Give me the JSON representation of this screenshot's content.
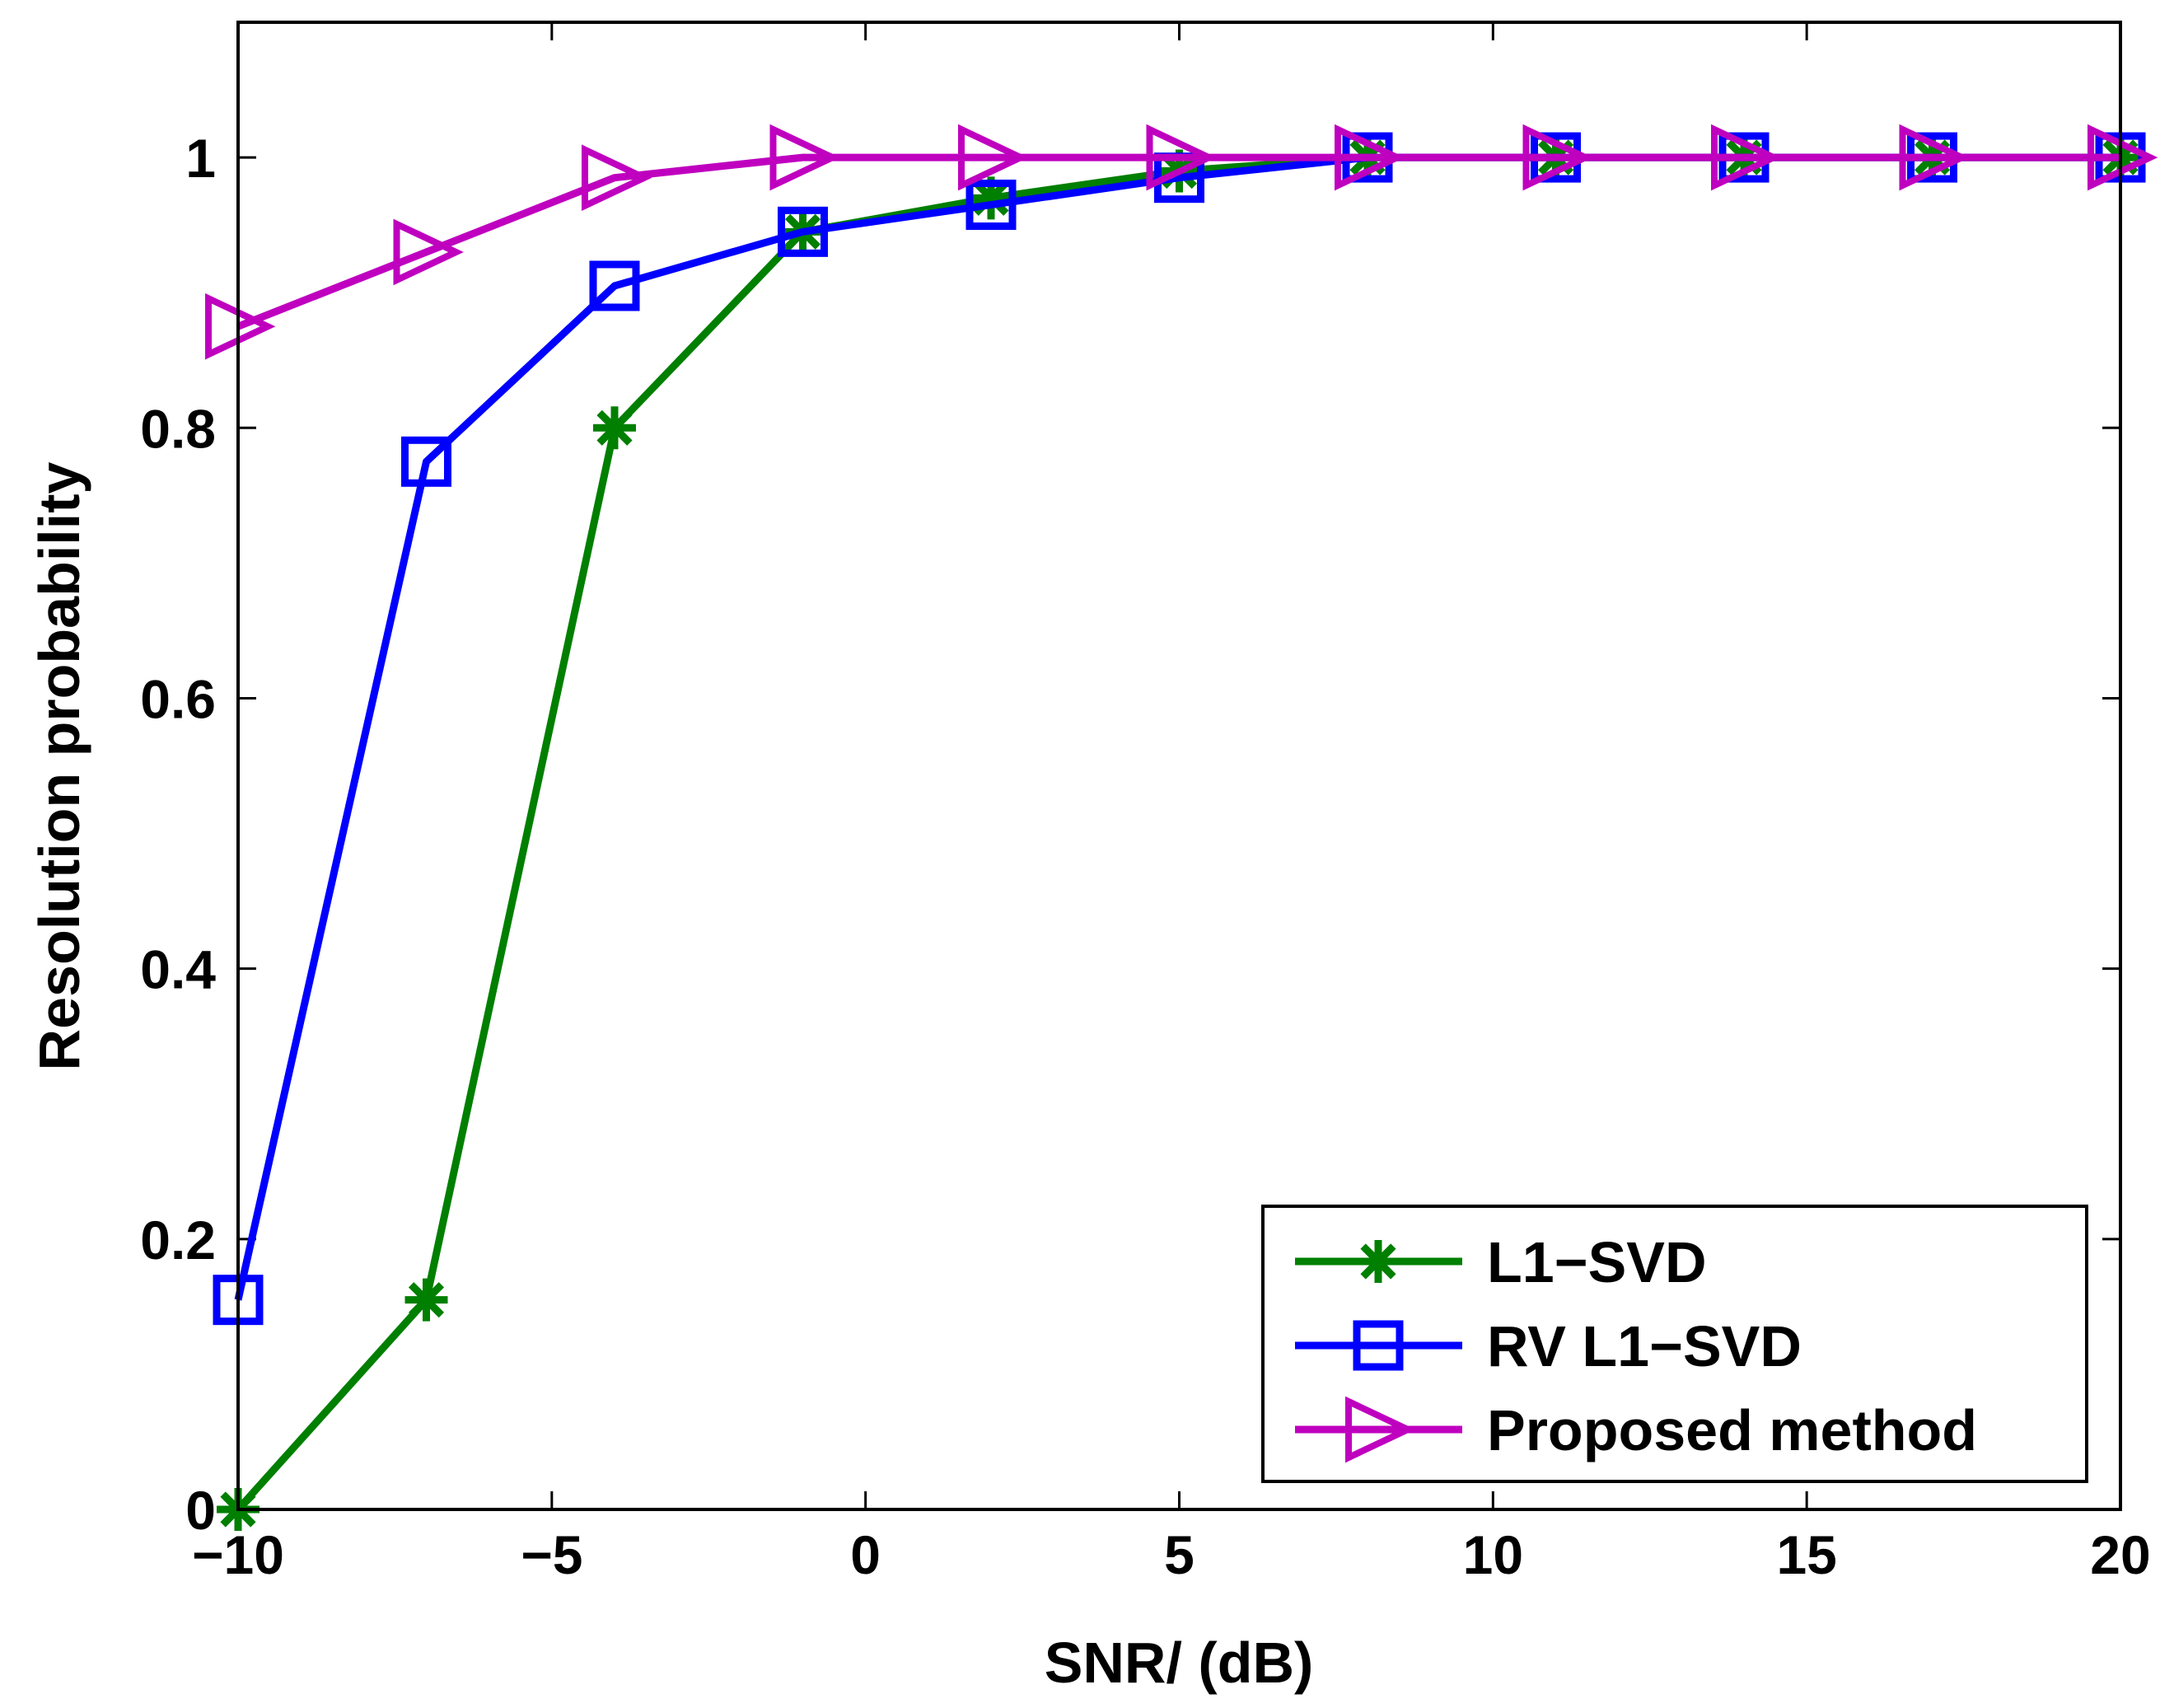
{
  "chart_data": {
    "type": "line",
    "title": "",
    "xlabel": "SNR/ (dB)",
    "ylabel": "Resolution probability",
    "xlim": [
      -10,
      20
    ],
    "ylim": [
      0,
      1.1
    ],
    "xticks": [
      -10,
      -5,
      0,
      5,
      10,
      15,
      20
    ],
    "xtick_labels": [
      "−10",
      "−5",
      "0",
      "5",
      "10",
      "15",
      "20"
    ],
    "yticks": [
      0,
      0.2,
      0.4,
      0.6,
      0.8,
      1
    ],
    "ytick_labels": [
      "0",
      "0.2",
      "0.4",
      "0.6",
      "0.8",
      "1"
    ],
    "grid": false,
    "legend_position": "bottom-right",
    "x": [
      -10,
      -7,
      -4,
      -1,
      2,
      5,
      8,
      11,
      14,
      17,
      20
    ],
    "series": [
      {
        "name": "L1−SVD",
        "color": "#007f00",
        "marker": "asterisk",
        "values": [
          0.0,
          0.155,
          0.8,
          0.945,
          0.97,
          0.99,
          1.0,
          1.0,
          1.0,
          1.0,
          1.0
        ]
      },
      {
        "name": "RV L1−SVD",
        "color": "#0000ff",
        "marker": "square",
        "values": [
          0.155,
          0.775,
          0.905,
          0.945,
          0.965,
          0.985,
          1.0,
          1.0,
          1.0,
          1.0,
          1.0
        ]
      },
      {
        "name": "Proposed method",
        "color": "#bf00bf",
        "marker": "triangle-right",
        "values": [
          0.875,
          0.93,
          0.985,
          1.0,
          1.0,
          1.0,
          1.0,
          1.0,
          1.0,
          1.0,
          1.0
        ]
      }
    ]
  }
}
